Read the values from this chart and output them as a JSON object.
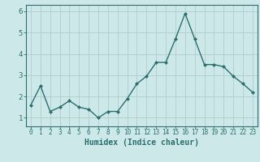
{
  "x": [
    0,
    1,
    2,
    3,
    4,
    5,
    6,
    7,
    8,
    9,
    10,
    11,
    12,
    13,
    14,
    15,
    16,
    17,
    18,
    19,
    20,
    21,
    22,
    23
  ],
  "y": [
    1.6,
    2.5,
    1.3,
    1.5,
    1.8,
    1.5,
    1.4,
    1.0,
    1.3,
    1.3,
    1.9,
    2.6,
    2.95,
    3.6,
    3.6,
    4.7,
    5.9,
    4.7,
    3.5,
    3.5,
    3.4,
    2.95,
    2.6,
    2.2
  ],
  "line_color": "#2d6e6e",
  "marker": "D",
  "marker_size": 2.0,
  "bg_color": "#cce8e8",
  "grid_color": "#b0cccc",
  "tick_color": "#2d6e6e",
  "xlabel": "Humidex (Indice chaleur)",
  "xlabel_fontsize": 7,
  "ylim": [
    0.6,
    6.3
  ],
  "yticks": [
    1,
    2,
    3,
    4,
    5,
    6
  ],
  "xticks": [
    0,
    1,
    2,
    3,
    4,
    5,
    6,
    7,
    8,
    9,
    10,
    11,
    12,
    13,
    14,
    15,
    16,
    17,
    18,
    19,
    20,
    21,
    22,
    23
  ],
  "xtick_labels": [
    "0",
    "1",
    "2",
    "3",
    "4",
    "5",
    "6",
    "7",
    "8",
    "9",
    "10",
    "11",
    "12",
    "13",
    "14",
    "15",
    "16",
    "17",
    "18",
    "19",
    "20",
    "21",
    "22",
    "23"
  ],
  "line_width": 1.0,
  "spine_color": "#2d6e6e",
  "tick_fontsize": 5.5,
  "ytick_fontsize": 6.5
}
